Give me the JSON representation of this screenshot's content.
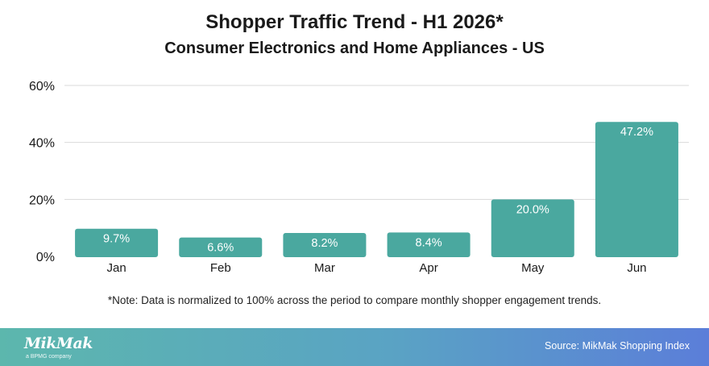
{
  "header": {
    "title": "Shopper Traffic Trend - H1 2026*",
    "subtitle": "Consumer Electronics and Home Appliances - US"
  },
  "note": "*Note: Data is normalized to 100% across the period to compare monthly shopper engagement trends.",
  "footer": {
    "logo_text": "MikMak",
    "logo_subtext": "a BPMG company",
    "source": "Source: MikMak Shopping Index"
  },
  "colors": {
    "bar": "#4aa89f",
    "bar_label": "#ffffff",
    "grid": "#d9d9d9"
  },
  "chart_data": {
    "type": "bar",
    "title": "Shopper Traffic Trend - H1 2026*",
    "subtitle": "Consumer Electronics and Home Appliances - US",
    "categories": [
      "Jan",
      "Feb",
      "Mar",
      "Apr",
      "May",
      "Jun"
    ],
    "values": [
      9.7,
      6.6,
      8.2,
      8.4,
      20.0,
      47.2
    ],
    "value_labels": [
      "9.7%",
      "6.6%",
      "8.2%",
      "8.4%",
      "20.0%",
      "47.2%"
    ],
    "y_ticks": [
      0,
      20,
      40,
      60
    ],
    "y_tick_labels": [
      "0%",
      "20%",
      "40%",
      "60%"
    ],
    "ylim": [
      0,
      60
    ],
    "xlabel": "",
    "ylabel": "",
    "grid": true,
    "legend": "none"
  }
}
